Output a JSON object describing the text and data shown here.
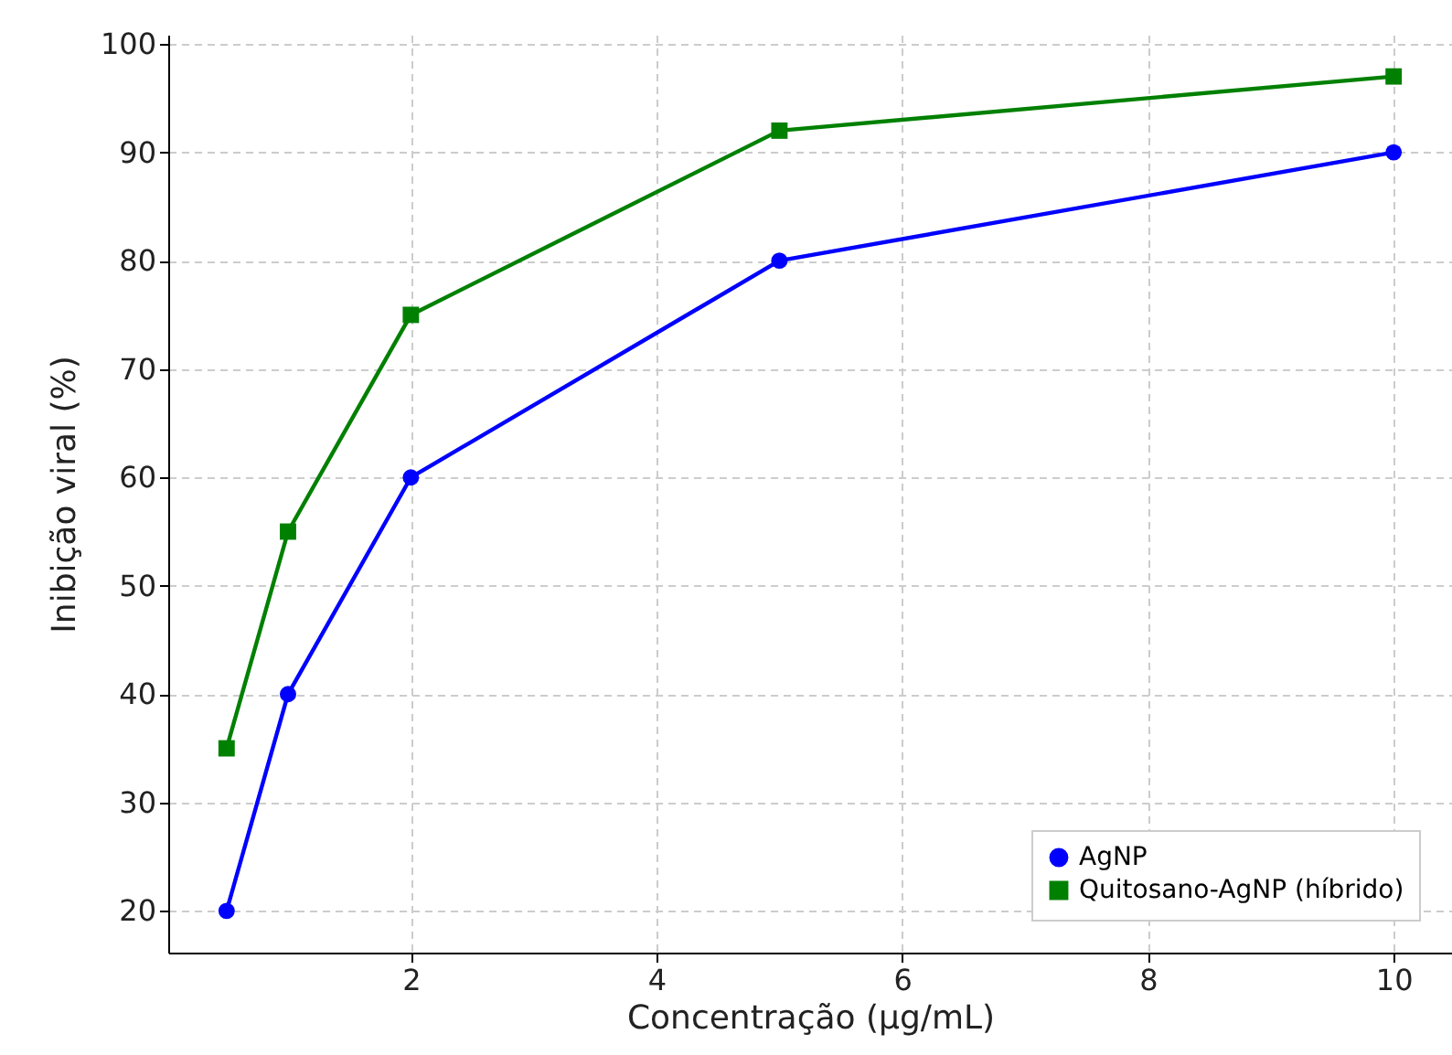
{
  "chart_data": {
    "type": "line",
    "xlabel": "Concentração (µg/mL)",
    "ylabel": "Inibição viral (%)",
    "x": [
      0.5,
      1,
      2,
      5,
      10
    ],
    "series": [
      {
        "name": "AgNP",
        "color": "#0000ff",
        "marker": "circle",
        "values": [
          20,
          40,
          60,
          80,
          90
        ]
      },
      {
        "name": "Quitosano-AgNP (híbrido)",
        "color": "#008000",
        "marker": "square",
        "values": [
          35,
          55,
          75,
          92,
          97
        ]
      }
    ],
    "xlim": [
      0.025,
      10.475
    ],
    "xticks": [
      2,
      4,
      6,
      8,
      10
    ],
    "ylim": [
      16.15,
      100.85
    ],
    "yticks": [
      20,
      30,
      40,
      50,
      60,
      70,
      80,
      90,
      100
    ],
    "grid": true,
    "legend": "bottom right",
    "line_style": "solid"
  }
}
